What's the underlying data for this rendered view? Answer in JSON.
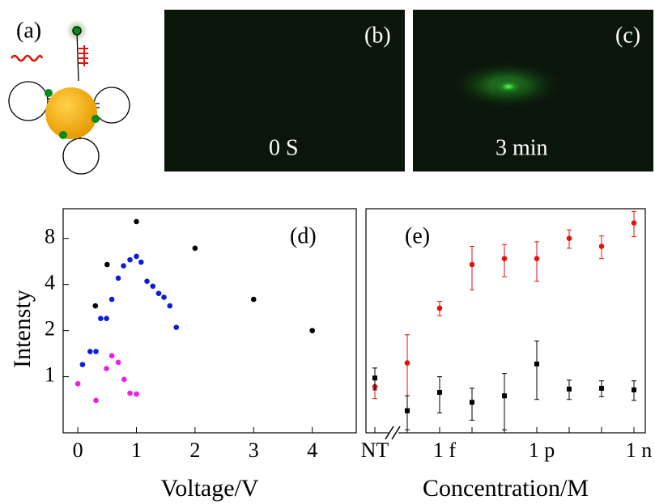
{
  "panels": {
    "a": {
      "label": "(a)"
    },
    "b": {
      "label": "(b)",
      "caption": "0 S"
    },
    "c": {
      "label": "(c)",
      "caption": "3 min"
    }
  },
  "chart_data": [
    {
      "type": "scatter",
      "panel_label": "(d)",
      "xlabel": "Voltage/V",
      "ylabel": "Intensty",
      "log_y": true,
      "xlim": [
        -0.25,
        4.75
      ],
      "ylim": [
        0.43,
        12.5
      ],
      "xticks": [
        0,
        1,
        2,
        3,
        4
      ],
      "yticks": [
        1,
        2,
        4,
        8
      ],
      "series": [
        {
          "color": "#000000",
          "marker": "circle",
          "x": [
            0.3,
            0.5,
            1.0,
            2.0,
            3.0,
            4.0
          ],
          "values": [
            2.9,
            5.4,
            10.3,
            6.9,
            3.2,
            2.0
          ]
        },
        {
          "color": "#0a1fd6",
          "marker": "circle",
          "x": [
            0.08,
            0.21,
            0.31,
            0.39,
            0.49,
            0.58,
            0.69,
            0.78,
            0.89,
            1.0,
            1.08,
            1.18,
            1.28,
            1.38,
            1.47,
            1.57,
            1.68
          ],
          "values": [
            1.2,
            1.46,
            1.46,
            2.4,
            2.4,
            3.2,
            4.4,
            5.3,
            5.8,
            6.1,
            5.6,
            4.2,
            3.9,
            3.5,
            3.3,
            2.9,
            2.1
          ]
        },
        {
          "color": "#ee1ee8",
          "marker": "circle",
          "x": [
            0,
            0.31,
            0.49,
            0.58,
            0.69,
            0.79,
            0.89,
            1.0
          ],
          "values": [
            0.9,
            0.7,
            1.13,
            1.37,
            1.24,
            0.96,
            0.78,
            0.77
          ]
        }
      ]
    },
    {
      "type": "scatter",
      "panel_label": "(e)",
      "xlabel": "Concentration/M",
      "log_y": true,
      "ylim": [
        0.43,
        12.5
      ],
      "categories": [
        "NT",
        null,
        "1 f",
        null,
        null,
        "1 p",
        null,
        null,
        "1 n"
      ],
      "series": [
        {
          "color": "#e3120b",
          "marker": "circle",
          "values": [
            0.86,
            1.23,
            2.8,
            5.4,
            5.9,
            5.9,
            8.0,
            7.1,
            10.1
          ],
          "errors": [
            0.14,
            0.65,
            0.3,
            1.7,
            1.4,
            1.7,
            1.1,
            1.2,
            1.9
          ]
        },
        {
          "color": "#000000",
          "marker": "square",
          "values": [
            0.98,
            0.6,
            0.79,
            0.68,
            0.75,
            1.21,
            0.83,
            0.84,
            0.82
          ],
          "errors": [
            0.16,
            0.15,
            0.21,
            0.16,
            0.3,
            0.5,
            0.12,
            0.1,
            0.12
          ]
        }
      ]
    }
  ]
}
